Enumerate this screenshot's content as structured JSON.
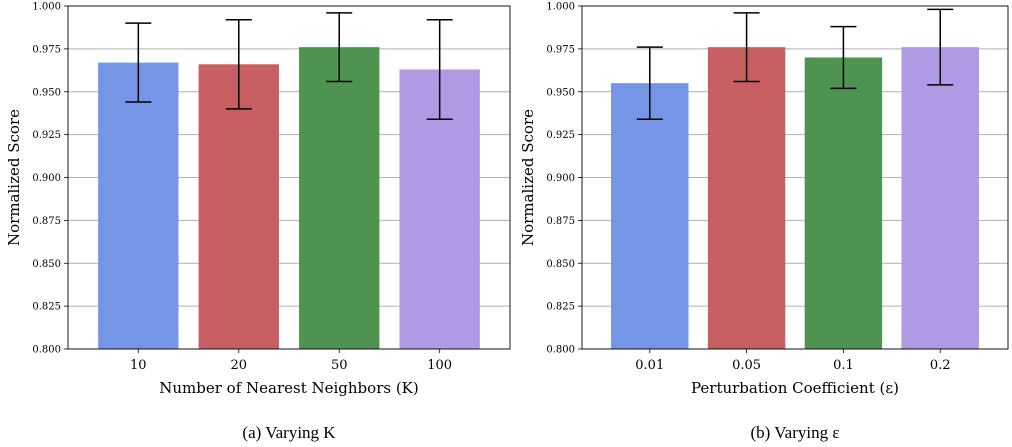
{
  "chart_data": [
    {
      "type": "bar",
      "caption": "(a) Varying K",
      "xlabel": "Number of Nearest Neighbors (K)",
      "ylabel": "Normalized Score",
      "categories": [
        "10",
        "20",
        "50",
        "100"
      ],
      "values": [
        0.967,
        0.966,
        0.976,
        0.963
      ],
      "error_low": [
        0.944,
        0.94,
        0.956,
        0.934
      ],
      "error_high": [
        0.99,
        0.992,
        0.996,
        0.992
      ],
      "colors": [
        "#7596e6",
        "#c75e62",
        "#4e934f",
        "#b09ae3"
      ],
      "ylim": [
        0.8,
        1.0
      ],
      "yticks": [
        "0.800",
        "0.825",
        "0.850",
        "0.875",
        "0.900",
        "0.925",
        "0.950",
        "0.975",
        "1.000"
      ],
      "grid": "horizontal"
    },
    {
      "type": "bar",
      "caption": "(b) Varying ε",
      "xlabel": "Perturbation Coefficient (ε)",
      "ylabel": "Normalized Score",
      "categories": [
        "0.01",
        "0.05",
        "0.1",
        "0.2"
      ],
      "values": [
        0.955,
        0.976,
        0.97,
        0.976
      ],
      "error_low": [
        0.934,
        0.956,
        0.952,
        0.954
      ],
      "error_high": [
        0.976,
        0.996,
        0.988,
        0.998
      ],
      "colors": [
        "#7596e6",
        "#c75e62",
        "#4e934f",
        "#b09ae3"
      ],
      "ylim": [
        0.8,
        1.0
      ],
      "yticks": [
        "0.800",
        "0.825",
        "0.850",
        "0.875",
        "0.900",
        "0.925",
        "0.950",
        "0.975",
        "1.000"
      ],
      "grid": "horizontal"
    }
  ]
}
